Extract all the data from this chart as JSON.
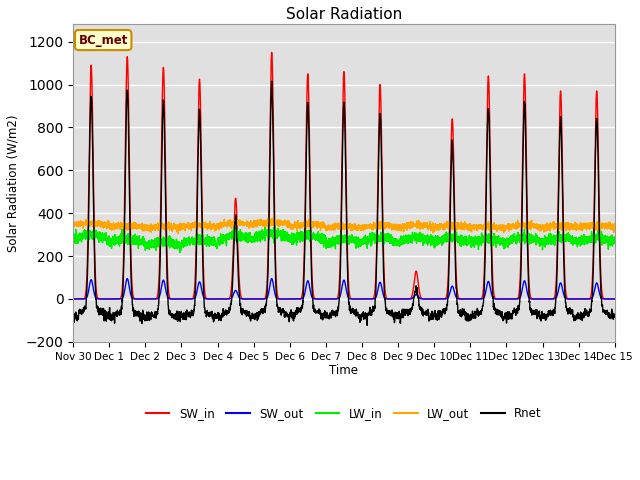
{
  "title": "Solar Radiation",
  "ylabel": "Solar Radiation (W/m2)",
  "xlabel": "Time",
  "ylim": [
    -200,
    1280
  ],
  "yticks": [
    -200,
    0,
    200,
    400,
    600,
    800,
    1000,
    1200
  ],
  "annotation_label": "BC_met",
  "annotation_color_bg": "#FFFFCC",
  "annotation_color_border": "#CC8800",
  "annotation_color_text": "#660000",
  "bg_color": "#E0E0E0",
  "fig_bg": "#FFFFFF",
  "series": {
    "SW_in": {
      "color": "#FF0000",
      "lw": 1.0
    },
    "SW_out": {
      "color": "#0000FF",
      "lw": 1.0
    },
    "LW_in": {
      "color": "#00EE00",
      "lw": 1.0
    },
    "LW_out": {
      "color": "#FFA500",
      "lw": 1.0
    },
    "Rnet": {
      "color": "#000000",
      "lw": 1.0
    }
  },
  "n_days": 15,
  "pts_per_day": 288,
  "tick_labels": [
    "Nov 30",
    "Dec 1",
    "Dec 2",
    "Dec 3",
    "Dec 4",
    "Dec 5",
    "Dec 6",
    "Dec 7",
    "Dec 8",
    "Dec 9",
    "Dec 10",
    "Dec 11",
    "Dec 12",
    "Dec 13",
    "Dec 14",
    "Dec 15"
  ],
  "grid_color": "#FFFFFF",
  "grid_lw": 1.0,
  "SW_in_peaks": [
    1090,
    1130,
    1080,
    1025,
    470,
    1150,
    1050,
    1060,
    1000,
    130,
    840,
    1040,
    1050,
    970,
    970
  ],
  "SW_out_peaks": [
    90,
    95,
    88,
    80,
    40,
    95,
    85,
    88,
    78,
    20,
    60,
    82,
    85,
    75,
    75
  ],
  "LW_in_base": [
    280,
    260,
    245,
    255,
    275,
    285,
    275,
    260,
    265,
    265,
    265,
    260,
    265,
    265,
    265
  ],
  "LW_out_base": [
    345,
    335,
    330,
    335,
    345,
    350,
    340,
    330,
    335,
    335,
    335,
    330,
    335,
    335,
    335
  ],
  "night_Rnet_base": -80,
  "figsize": [
    6.4,
    4.8
  ],
  "dpi": 100
}
